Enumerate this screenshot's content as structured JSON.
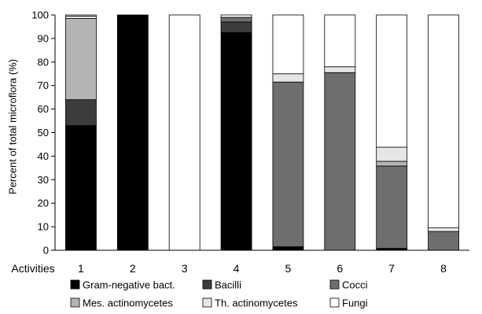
{
  "chart_data": {
    "type": "bar",
    "stacked": true,
    "title": "",
    "xlabel": "Activities",
    "ylabel": "Percent of total microflora (%)",
    "ylim": [
      0,
      100
    ],
    "yticks": [
      "0",
      "10",
      "20",
      "30",
      "40",
      "50",
      "60",
      "70",
      "80",
      "90",
      "100"
    ],
    "grid": false,
    "legend_position": "bottom",
    "categories": [
      "1",
      "2",
      "3",
      "4",
      "5",
      "6",
      "7",
      "8"
    ],
    "series": [
      {
        "name": "Gram-negative bact.",
        "color": "#000000",
        "values": [
          53,
          100,
          0,
          92.5,
          1.5,
          0,
          0.8,
          0
        ]
      },
      {
        "name": "Bacilli",
        "color": "#3c3c3c",
        "values": [
          11,
          0,
          0,
          4.5,
          0,
          0,
          0,
          0
        ]
      },
      {
        "name": "Cocci",
        "color": "#6e6e6e",
        "values": [
          0,
          0,
          0,
          2,
          70,
          75.5,
          35,
          8
        ]
      },
      {
        "name": "Mes. actinomycetes",
        "color": "#b4b4b4",
        "values": [
          34.5,
          0,
          0,
          0,
          0,
          0,
          2,
          0
        ]
      },
      {
        "name": "Th. actinomycetes",
        "color": "#e6e6e6",
        "values": [
          1,
          0,
          0,
          0,
          3.5,
          2.5,
          6,
          1.5
        ]
      },
      {
        "name": "Fungi",
        "color": "#ffffff",
        "values": [
          0.5,
          0,
          100,
          1,
          25,
          22,
          56.2,
          90.5
        ]
      }
    ]
  }
}
